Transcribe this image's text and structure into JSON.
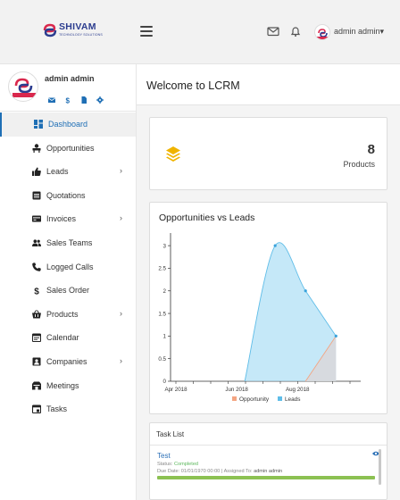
{
  "brand": {
    "name": "SHIVAM",
    "tagline": "TECHNOLOGY SOLUTIONS"
  },
  "topbar": {
    "user_label": "admin admin"
  },
  "profile": {
    "name": "admin admin"
  },
  "nav": [
    {
      "label": "Dashboard",
      "icon": "dashboard-icon",
      "active": true,
      "submenu": false
    },
    {
      "label": "Opportunities",
      "icon": "opportunities-icon",
      "active": false,
      "submenu": false
    },
    {
      "label": "Leads",
      "icon": "thumbs-up-icon",
      "active": false,
      "submenu": true
    },
    {
      "label": "Quotations",
      "icon": "quotation-icon",
      "active": false,
      "submenu": false
    },
    {
      "label": "Invoices",
      "icon": "invoice-icon",
      "active": false,
      "submenu": true
    },
    {
      "label": "Sales Teams",
      "icon": "users-icon",
      "active": false,
      "submenu": false
    },
    {
      "label": "Logged Calls",
      "icon": "phone-icon",
      "active": false,
      "submenu": false
    },
    {
      "label": "Sales Order",
      "icon": "dollar-icon",
      "active": false,
      "submenu": false
    },
    {
      "label": "Products",
      "icon": "basket-icon",
      "active": false,
      "submenu": true
    },
    {
      "label": "Calendar",
      "icon": "calendar-icon",
      "active": false,
      "submenu": false
    },
    {
      "label": "Companies",
      "icon": "building-icon",
      "active": false,
      "submenu": true
    },
    {
      "label": "Meetings",
      "icon": "meetings-icon",
      "active": false,
      "submenu": false
    },
    {
      "label": "Tasks",
      "icon": "tasks-icon",
      "active": false,
      "submenu": false
    }
  ],
  "page": {
    "title": "Welcome to LCRM"
  },
  "stat": {
    "value": "8",
    "label": "Products"
  },
  "colors": {
    "accent": "#1f6fb5",
    "opportunity": "#f4a582",
    "leads": "#a6dcf5",
    "stat_icon": "#f0b400",
    "task_bar": "#8cc152"
  },
  "chart_data": {
    "type": "area",
    "title": "Opportunities vs Leads",
    "x_ticks": [
      "Apr 2018",
      "Jun 2018",
      "Aug 2018"
    ],
    "x": [
      "2018-04",
      "2018-05",
      "2018-06",
      "2018-07",
      "2018-08",
      "2018-09"
    ],
    "y_ticks": [
      "0",
      "0.5",
      "1",
      "1.5",
      "2",
      "2.5",
      "3"
    ],
    "ylim": [
      0,
      3.2
    ],
    "series": [
      {
        "name": "Opportunity",
        "values": [
          0,
          0,
          0,
          0,
          0,
          1
        ]
      },
      {
        "name": "Leads",
        "values": [
          0,
          0,
          0,
          3,
          2,
          1
        ]
      }
    ],
    "legend": "bottom"
  },
  "tasks": {
    "title": "Task List",
    "items": [
      {
        "name": "Test",
        "status_label": "Status:",
        "status": "Completed",
        "due_label": "Due Date:",
        "due": "01/01/1970 00:00",
        "assigned_label": "Assigned To:",
        "assigned": "admin admin"
      }
    ]
  }
}
